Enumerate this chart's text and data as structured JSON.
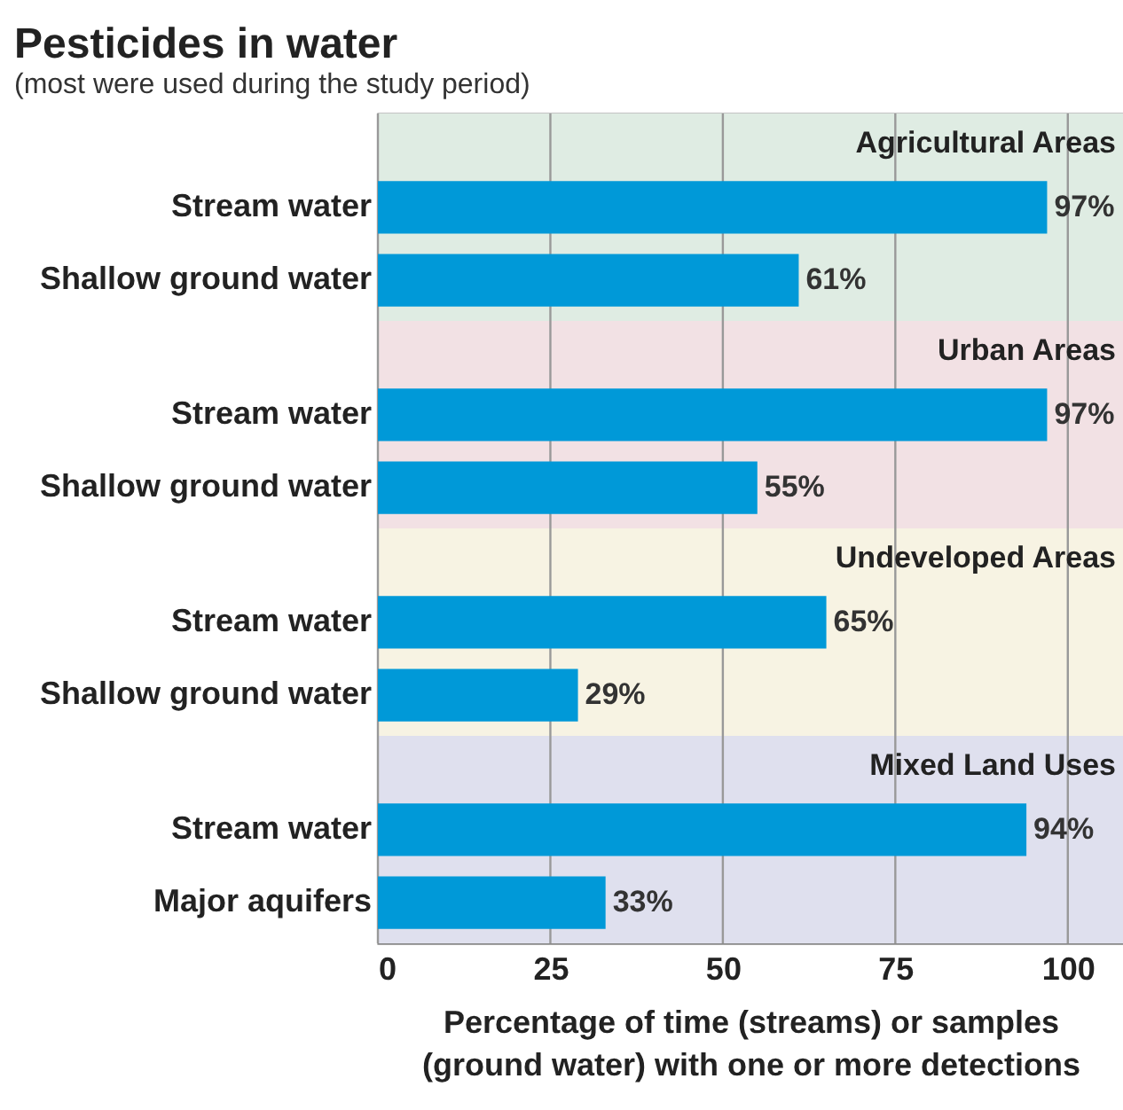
{
  "chart_data": [
    {
      "type": "bar",
      "orientation": "horizontal",
      "title": "Pesticides in water",
      "subtitle": "(most were used during the study period)",
      "categories": [
        "Stream water",
        "Shallow ground water"
      ],
      "values": [
        97,
        61
      ],
      "value_labels": [
        "97%",
        "61%"
      ],
      "color": "#0099d8",
      "xlim": [
        0,
        108
      ],
      "xticks": [
        0,
        25,
        50,
        75,
        100
      ],
      "grid": "x",
      "tick_labels": "y",
      "bands": [
        {
          "axis": "x",
          "from": 0,
          "to": 108,
          "label": "Agricultural Areas",
          "color": "#dfece3"
        }
      ]
    },
    {
      "type": "bar",
      "orientation": "horizontal",
      "categories": [
        "Stream water",
        "Shallow ground water"
      ],
      "values": [
        97,
        55
      ],
      "value_labels": [
        "97%",
        "55%"
      ],
      "color": "#0099d8",
      "xlim": [
        0,
        108
      ],
      "xticks": [
        0,
        25,
        50,
        75,
        100
      ],
      "grid": "x",
      "tick_labels": "y",
      "bands": [
        {
          "axis": "x",
          "from": 0,
          "to": 108,
          "label": "Urban Areas",
          "color": "#f2e1e4"
        }
      ]
    },
    {
      "type": "bar",
      "orientation": "horizontal",
      "categories": [
        "Stream water",
        "Shallow ground water"
      ],
      "values": [
        65,
        29
      ],
      "value_labels": [
        "65%",
        "29%"
      ],
      "color": "#0099d8",
      "xlim": [
        0,
        108
      ],
      "xticks": [
        0,
        25,
        50,
        75,
        100
      ],
      "grid": "x",
      "tick_labels": "y",
      "bands": [
        {
          "axis": "x",
          "from": 0,
          "to": 108,
          "label": "Undeveloped Areas",
          "color": "#f7f3e3"
        }
      ]
    },
    {
      "type": "bar",
      "orientation": "horizontal",
      "categories": [
        "Stream water",
        "Major aquifers"
      ],
      "values": [
        94,
        33
      ],
      "value_labels": [
        "94%",
        "33%"
      ],
      "color": "#0099d8",
      "xlim": [
        0,
        108
      ],
      "xticks": [
        0,
        25,
        50,
        75,
        100
      ],
      "grid": "x",
      "xlabel": "Percentage of time (streams) or samples\n(ground water) with one or more detections",
      "bands": [
        {
          "axis": "x",
          "from": 0,
          "to": 108,
          "label": "Mixed Land Uses",
          "color": "#dfe0ee"
        }
      ]
    }
  ]
}
